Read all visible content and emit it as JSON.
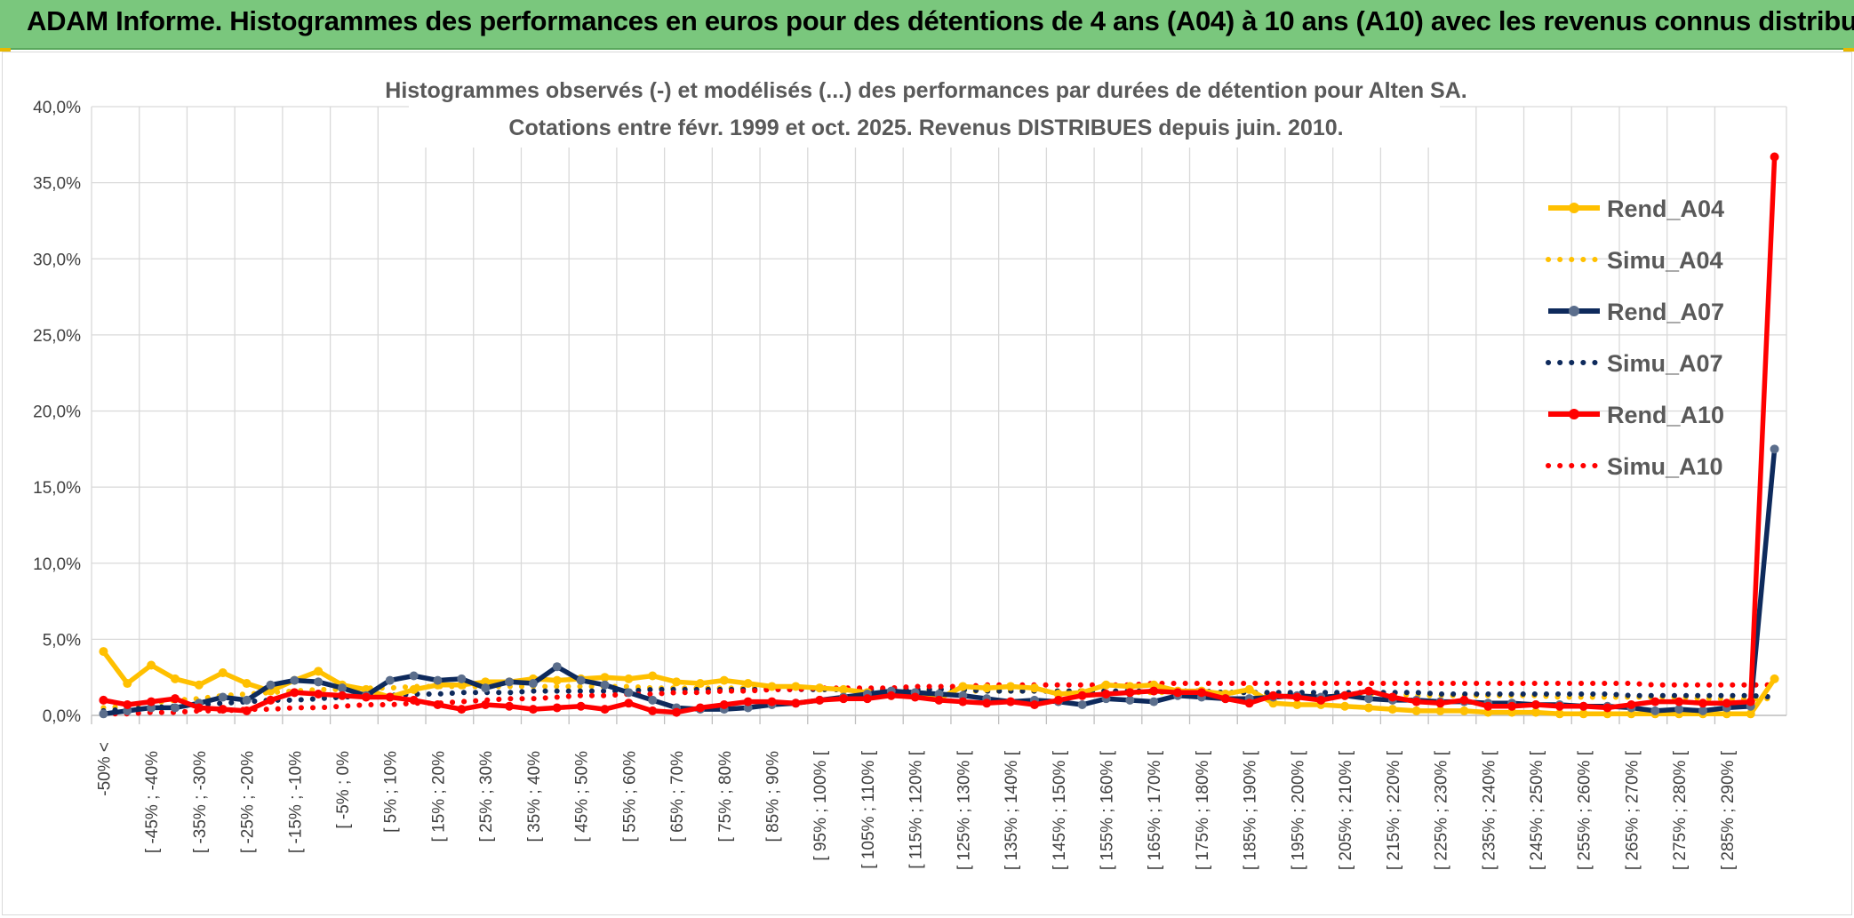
{
  "banner": {
    "title": "ADAM Informe. Histogrammes des performances en euros pour des détentions de 4 ans (A04) à 10 ans (A10) avec les revenus connus distribués"
  },
  "colors": {
    "banner_bg": "#7ac77d",
    "a04": "#ffc000",
    "a07": "#0e2a5c",
    "a07_marker": "#5b6e8c",
    "a10": "#ff0000",
    "grid": "#d9d9d9"
  },
  "chart_data": {
    "type": "line",
    "title": "Histogrammes observés (-) et modélisés (...) des performances par durées de détention pour Alten SA.",
    "subtitle": "Cotations entre févr. 1999 et oct. 2025. Revenus DISTRIBUES depuis juin. 2010.",
    "ylim": [
      0,
      40
    ],
    "ytick_labels": [
      "0,0%",
      "5,0%",
      "10,0%",
      "15,0%",
      "20,0%",
      "25,0%",
      "30,0%",
      "35,0%",
      "40,0%"
    ],
    "x_tick_labels": [
      "-50% <",
      "[ -45% ; -40%",
      "[ -35% ; -30%",
      "[ -25% ; -20%",
      "[ -15% ; -10%",
      "[ -5% ; 0%",
      "[ 5% ; 10%",
      "[ 15% ; 20%",
      "[ 25% ; 30%",
      "[ 35% ; 40%",
      "[ 45% ; 50%",
      "[ 55% ; 60%",
      "[ 65% ; 70%",
      "[ 75% ; 80%",
      "[ 85% ; 90%",
      "[ 95% ; 100% [",
      "[ 105% ; 110% [",
      "[ 115% ; 120% [",
      "[ 125% ; 130% [",
      "[ 135% ; 140% [",
      "[ 145% ; 150% [",
      "[ 155% ; 160% [",
      "[ 165% ; 170% [",
      "[ 175% ; 180% [",
      "[ 185% ; 190% [",
      "[ 195% ; 200% [",
      "[ 205% ; 210% [",
      "[ 215% ; 220% [",
      "[ 225% ; 230% [",
      "[ 235% ; 240% [",
      "[ 245% ; 250% [",
      "[ 255% ; 260% [",
      "[ 265% ; 270% [",
      "[ 275% ; 280% [",
      "[ 285% ; 290% ["
    ],
    "n_bins": 71,
    "series": [
      {
        "name": "Rend_A04",
        "style": "solid",
        "color": "#ffc000",
        "values": [
          4.2,
          2.1,
          3.3,
          2.4,
          2.0,
          2.8,
          2.1,
          1.6,
          2.3,
          2.9,
          2.0,
          1.7,
          1.2,
          1.7,
          2.0,
          2.0,
          2.2,
          2.2,
          2.4,
          2.3,
          2.4,
          2.5,
          2.4,
          2.6,
          2.2,
          2.1,
          2.3,
          2.1,
          1.9,
          1.9,
          1.8,
          1.7,
          1.5,
          1.3,
          1.3,
          1.1,
          1.9,
          1.8,
          1.9,
          1.8,
          1.4,
          1.5,
          2.0,
          1.9,
          2.0,
          1.6,
          1.6,
          1.4,
          1.7,
          0.8,
          0.7,
          0.7,
          0.6,
          0.5,
          0.4,
          0.3,
          0.3,
          0.3,
          0.2,
          0.2,
          0.2,
          0.1,
          0.1,
          0.1,
          0.1,
          0.1,
          0.1,
          0.1,
          0.1,
          0.1,
          2.4
        ]
      },
      {
        "name": "Simu_A04",
        "style": "dotted",
        "color": "#ffc000",
        "values": [
          0.5,
          0.6,
          0.8,
          1.0,
          1.1,
          1.3,
          1.4,
          1.5,
          1.6,
          1.7,
          1.7,
          1.8,
          1.8,
          1.9,
          1.9,
          1.9,
          1.9,
          1.9,
          1.9,
          1.9,
          1.9,
          1.9,
          1.9,
          1.8,
          1.8,
          1.8,
          1.8,
          1.8,
          1.8,
          1.8,
          1.7,
          1.7,
          1.7,
          1.7,
          1.7,
          1.7,
          1.6,
          1.6,
          1.6,
          1.6,
          1.6,
          1.6,
          1.6,
          1.5,
          1.5,
          1.5,
          1.5,
          1.5,
          1.5,
          1.4,
          1.4,
          1.4,
          1.4,
          1.4,
          1.4,
          1.3,
          1.3,
          1.3,
          1.3,
          1.3,
          1.3,
          1.2,
          1.2,
          1.2,
          1.2,
          1.2,
          1.2,
          1.1,
          1.1,
          1.1,
          1.1
        ]
      },
      {
        "name": "Rend_A07",
        "style": "solid",
        "color": "#0e2a5c",
        "values": [
          0.1,
          0.3,
          0.5,
          0.5,
          0.8,
          1.2,
          1.0,
          2.0,
          2.3,
          2.2,
          1.8,
          1.3,
          2.3,
          2.6,
          2.3,
          2.4,
          1.8,
          2.2,
          2.1,
          3.2,
          2.3,
          2.0,
          1.5,
          1.0,
          0.5,
          0.4,
          0.4,
          0.5,
          0.7,
          0.8,
          1.0,
          1.2,
          1.4,
          1.6,
          1.5,
          1.4,
          1.3,
          1.1,
          0.9,
          1.0,
          0.9,
          0.7,
          1.1,
          1.0,
          0.9,
          1.3,
          1.2,
          1.1,
          1.1,
          1.2,
          1.3,
          1.2,
          1.3,
          1.1,
          1.0,
          1.0,
          0.9,
          0.9,
          0.8,
          0.8,
          0.7,
          0.7,
          0.6,
          0.6,
          0.5,
          0.3,
          0.4,
          0.3,
          0.5,
          0.6,
          17.5
        ]
      },
      {
        "name": "Simu_A07",
        "style": "dotted",
        "color": "#0e2a5c",
        "values": [
          0.3,
          0.4,
          0.5,
          0.6,
          0.7,
          0.8,
          0.9,
          1.0,
          1.0,
          1.1,
          1.2,
          1.3,
          1.3,
          1.4,
          1.4,
          1.5,
          1.5,
          1.5,
          1.6,
          1.6,
          1.6,
          1.6,
          1.6,
          1.7,
          1.7,
          1.7,
          1.7,
          1.7,
          1.7,
          1.7,
          1.7,
          1.7,
          1.7,
          1.7,
          1.7,
          1.7,
          1.7,
          1.6,
          1.6,
          1.6,
          1.6,
          1.6,
          1.6,
          1.6,
          1.6,
          1.6,
          1.6,
          1.5,
          1.5,
          1.5,
          1.5,
          1.5,
          1.5,
          1.5,
          1.5,
          1.5,
          1.4,
          1.4,
          1.4,
          1.4,
          1.4,
          1.4,
          1.4,
          1.4,
          1.3,
          1.3,
          1.3,
          1.3,
          1.3,
          1.3,
          1.2
        ]
      },
      {
        "name": "Rend_A10",
        "style": "solid",
        "color": "#ff0000",
        "values": [
          1.0,
          0.7,
          0.9,
          1.1,
          0.5,
          0.4,
          0.3,
          1.0,
          1.5,
          1.4,
          1.3,
          1.2,
          1.2,
          1.0,
          0.7,
          0.4,
          0.7,
          0.6,
          0.4,
          0.5,
          0.6,
          0.4,
          0.8,
          0.3,
          0.2,
          0.5,
          0.7,
          0.9,
          0.9,
          0.8,
          1.0,
          1.1,
          1.1,
          1.3,
          1.2,
          1.0,
          0.9,
          0.8,
          0.9,
          0.7,
          1.0,
          1.3,
          1.4,
          1.5,
          1.6,
          1.5,
          1.5,
          1.1,
          0.8,
          1.3,
          1.2,
          1.0,
          1.3,
          1.6,
          1.2,
          0.9,
          0.8,
          1.0,
          0.6,
          0.6,
          0.7,
          0.6,
          0.6,
          0.5,
          0.7,
          0.9,
          0.9,
          0.8,
          0.8,
          0.9,
          36.7
        ]
      },
      {
        "name": "Simu_A10",
        "style": "dotted",
        "color": "#ff0000",
        "values": [
          0.1,
          0.1,
          0.2,
          0.2,
          0.3,
          0.3,
          0.4,
          0.4,
          0.5,
          0.5,
          0.6,
          0.7,
          0.7,
          0.8,
          0.8,
          0.9,
          1.0,
          1.1,
          1.1,
          1.2,
          1.3,
          1.3,
          1.4,
          1.4,
          1.5,
          1.5,
          1.6,
          1.6,
          1.7,
          1.7,
          1.8,
          1.8,
          1.8,
          1.8,
          1.9,
          1.9,
          1.9,
          2.0,
          2.0,
          2.0,
          2.0,
          2.0,
          2.0,
          2.0,
          2.1,
          2.1,
          2.1,
          2.1,
          2.1,
          2.1,
          2.1,
          2.1,
          2.1,
          2.1,
          2.1,
          2.1,
          2.1,
          2.1,
          2.1,
          2.1,
          2.1,
          2.1,
          2.1,
          2.1,
          2.1,
          2.0,
          2.0,
          2.0,
          2.0,
          2.0,
          2.0
        ]
      }
    ],
    "legend": {
      "position": "right",
      "entries": [
        "Rend_A04",
        "Simu_A04",
        "Rend_A07",
        "Simu_A07",
        "Rend_A10",
        "Simu_A10"
      ]
    }
  }
}
